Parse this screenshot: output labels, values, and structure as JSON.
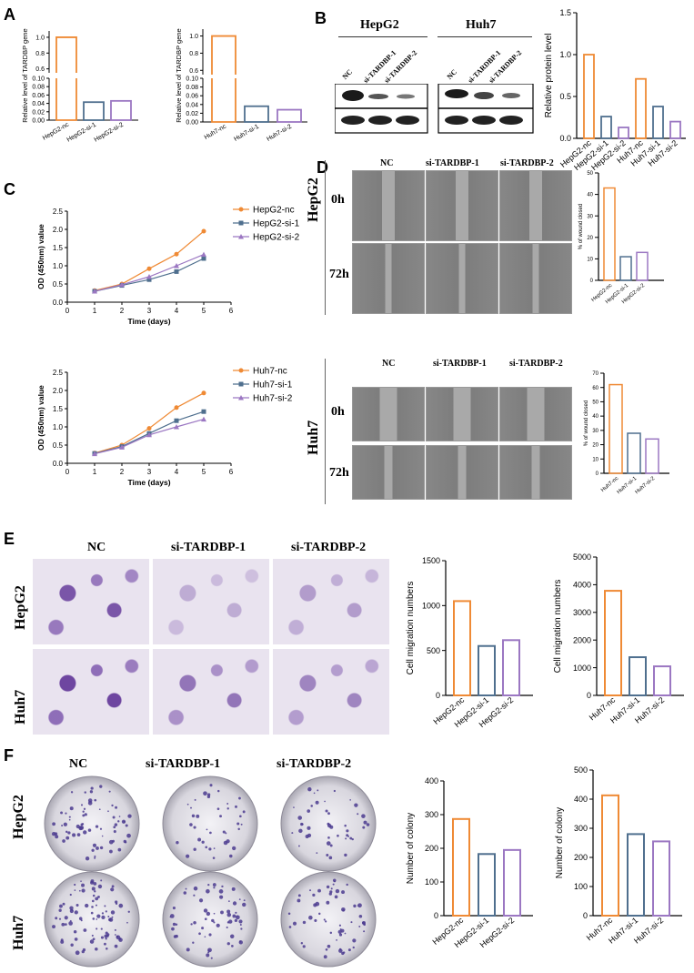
{
  "panels": {
    "A": {
      "letter": "A",
      "left_chart": {
        "ylabel": "Relative level of TARDBP gene",
        "categories": [
          "HepG2-nc",
          "HepG2-si-1",
          "HepG2-si-2"
        ],
        "values": [
          1.0,
          0.043,
          0.046
        ],
        "colors": [
          "#ef8a35",
          "#4f6f8e",
          "#9b77c2"
        ],
        "upper_ticks": [
          "0.6",
          "0.8",
          "1.0"
        ],
        "lower_ticks": [
          "0.00",
          "0.02",
          "0.04",
          "0.06",
          "0.08",
          "0.10"
        ]
      },
      "right_chart": {
        "ylabel": "Relative level of TARDBP gene",
        "categories": [
          "Huh7-nc",
          "Huh7-si-1",
          "Huh7-si-2"
        ],
        "values": [
          1.0,
          0.036,
          0.028
        ],
        "colors": [
          "#ef8a35",
          "#4f6f8e",
          "#9b77c2"
        ],
        "upper_ticks": [
          "0.6",
          "0.8",
          "1.0"
        ],
        "lower_ticks": [
          "0.00",
          "0.02",
          "0.04",
          "0.06",
          "0.08",
          "0.10"
        ]
      }
    },
    "B": {
      "letter": "B",
      "blot_groups": [
        "HepG2",
        "Huh7"
      ],
      "lane_labels": [
        "NC",
        "si-TARDBP-1",
        "si-TARDBP-2",
        "NC",
        "si-TARDBP-1",
        "si-TARDBP-2"
      ],
      "chart": {
        "ylabel": "Relative protein level",
        "categories": [
          "HepG2-nc",
          "HepG2-si-1",
          "HepG2-si-2",
          "Huh7-nc",
          "Huh7-si-1",
          "Huh7-si-2"
        ],
        "values": [
          1.0,
          0.26,
          0.13,
          0.71,
          0.38,
          0.2
        ],
        "colors": [
          "#ef8a35",
          "#4f6f8e",
          "#9b77c2",
          "#ef8a35",
          "#4f6f8e",
          "#9b77c2"
        ],
        "yticks": [
          "0.0",
          "0.5",
          "1.0",
          "1.5"
        ]
      }
    },
    "C": {
      "letter": "C",
      "charts": [
        {
          "ylabel": "OD (450nm) value",
          "xlabel": "Time (days)",
          "xticks": [
            "0",
            "1",
            "2",
            "3",
            "4",
            "5",
            "6"
          ],
          "yticks": [
            "0.0",
            "0.5",
            "1.0",
            "1.5",
            "2.0",
            "2.5"
          ],
          "series": [
            {
              "name": "HepG2-nc",
              "color": "#ef8a35",
              "x": [
                1,
                2,
                3,
                4,
                5
              ],
              "y": [
                0.32,
                0.5,
                0.92,
                1.32,
                1.95
              ]
            },
            {
              "name": "HepG2-si-1",
              "color": "#4f6f8e",
              "x": [
                1,
                2,
                3,
                4,
                5
              ],
              "y": [
                0.3,
                0.46,
                0.62,
                0.84,
                1.2
              ]
            },
            {
              "name": "HepG2-si-2",
              "color": "#9b77c2",
              "x": [
                1,
                2,
                3,
                4,
                5
              ],
              "y": [
                0.3,
                0.48,
                0.7,
                1.0,
                1.31
              ]
            }
          ]
        },
        {
          "ylabel": "OD (450nm) value",
          "xlabel": "Time (days)",
          "xticks": [
            "0",
            "1",
            "2",
            "3",
            "4",
            "5",
            "6"
          ],
          "yticks": [
            "0.0",
            "0.5",
            "1.0",
            "1.5",
            "2.0",
            "2.5"
          ],
          "series": [
            {
              "name": "Huh7-nc",
              "color": "#ef8a35",
              "x": [
                1,
                2,
                3,
                4,
                5
              ],
              "y": [
                0.28,
                0.5,
                0.96,
                1.53,
                1.93
              ]
            },
            {
              "name": "Huh7-si-1",
              "color": "#4f6f8e",
              "x": [
                1,
                2,
                3,
                4,
                5
              ],
              "y": [
                0.27,
                0.46,
                0.82,
                1.17,
                1.42
              ]
            },
            {
              "name": "Huh7-si-2",
              "color": "#9b77c2",
              "x": [
                1,
                2,
                3,
                4,
                5
              ],
              "y": [
                0.26,
                0.44,
                0.78,
                1.0,
                1.21
              ]
            }
          ]
        }
      ]
    },
    "D": {
      "letter": "D",
      "col_labels": [
        "NC",
        "si-TARDBP-1",
        "si-TARDBP-2"
      ],
      "row_labels": [
        "0h",
        "72h"
      ],
      "cell_lines": [
        "HepG2",
        "Huh7"
      ],
      "charts": [
        {
          "ylabel": "% of wound closed",
          "categories": [
            "HepG2-nc",
            "HepG2-si-1",
            "HepG2-si-2"
          ],
          "values": [
            43,
            11,
            13
          ],
          "yticks": [
            "0",
            "10",
            "20",
            "30",
            "40",
            "50"
          ],
          "colors": [
            "#ef8a35",
            "#4f6f8e",
            "#9b77c2"
          ]
        },
        {
          "ylabel": "% of wound closed",
          "categories": [
            "Huh7-nc",
            "Huh7-si-1",
            "Huh7-si-2"
          ],
          "values": [
            62,
            28,
            24
          ],
          "yticks": [
            "0",
            "10",
            "20",
            "30",
            "40",
            "50",
            "60",
            "70"
          ],
          "colors": [
            "#ef8a35",
            "#4f6f8e",
            "#9b77c2"
          ]
        }
      ]
    },
    "E": {
      "letter": "E",
      "col_labels": [
        "NC",
        "si-TARDBP-1",
        "si-TARDBP-2"
      ],
      "row_labels": [
        "HepG2",
        "Huh7"
      ],
      "charts": [
        {
          "ylabel": "Cell migration numbers",
          "categories": [
            "HepG2-nc",
            "HepG2-si-1",
            "HepG2-si-2"
          ],
          "values": [
            1050,
            550,
            615
          ],
          "yticks": [
            "0",
            "500",
            "1000",
            "1500"
          ],
          "colors": [
            "#ef8a35",
            "#4f6f8e",
            "#9b77c2"
          ]
        },
        {
          "ylabel": "Cell migration numbers",
          "categories": [
            "Huh7-nc",
            "Huh7-si-1",
            "Huh7-si-2"
          ],
          "values": [
            3780,
            1380,
            1050
          ],
          "yticks": [
            "0",
            "1000",
            "2000",
            "3000",
            "4000",
            "5000"
          ],
          "colors": [
            "#ef8a35",
            "#4f6f8e",
            "#9b77c2"
          ]
        }
      ]
    },
    "F": {
      "letter": "F",
      "col_labels": [
        "NC",
        "si-TARDBP-1",
        "si-TARDBP-2"
      ],
      "row_labels": [
        "HepG2",
        "Huh7"
      ],
      "charts": [
        {
          "ylabel": "Number of colony",
          "categories": [
            "HepG2-nc",
            "HepG2-si-1",
            "HepG2-si-2"
          ],
          "values": [
            287,
            183,
            195
          ],
          "yticks": [
            "0",
            "100",
            "200",
            "300",
            "400"
          ],
          "colors": [
            "#ef8a35",
            "#4f6f8e",
            "#9b77c2"
          ]
        },
        {
          "ylabel": "Number of colony",
          "categories": [
            "Huh7-nc",
            "Huh7-si-1",
            "Huh7-si-2"
          ],
          "values": [
            413,
            280,
            255
          ],
          "yticks": [
            "0",
            "100",
            "200",
            "300",
            "400",
            "500"
          ],
          "colors": [
            "#ef8a35",
            "#4f6f8e",
            "#9b77c2"
          ]
        }
      ]
    }
  },
  "chart_data": [
    {
      "type": "bar",
      "ylabel": "Relative level of TARDBP gene",
      "categories": [
        "HepG2-nc",
        "HepG2-si-1",
        "HepG2-si-2"
      ],
      "values": [
        1.0,
        0.043,
        0.046
      ]
    },
    {
      "type": "bar",
      "ylabel": "Relative level of TARDBP gene",
      "categories": [
        "Huh7-nc",
        "Huh7-si-1",
        "Huh7-si-2"
      ],
      "values": [
        1.0,
        0.036,
        0.028
      ]
    },
    {
      "type": "bar",
      "ylabel": "Relative protein level",
      "categories": [
        "HepG2-nc",
        "HepG2-si-1",
        "HepG2-si-2",
        "Huh7-nc",
        "Huh7-si-1",
        "Huh7-si-2"
      ],
      "values": [
        1.0,
        0.26,
        0.13,
        0.71,
        0.38,
        0.2
      ],
      "ylim": [
        0,
        1.5
      ]
    },
    {
      "type": "line",
      "xlabel": "Time (days)",
      "ylabel": "OD (450nm) value",
      "x": [
        1,
        2,
        3,
        4,
        5
      ],
      "xlim": [
        0,
        6
      ],
      "ylim": [
        0,
        2.5
      ],
      "series": [
        {
          "name": "HepG2-nc",
          "values": [
            0.32,
            0.5,
            0.92,
            1.32,
            1.95
          ]
        },
        {
          "name": "HepG2-si-1",
          "values": [
            0.3,
            0.46,
            0.62,
            0.84,
            1.2
          ]
        },
        {
          "name": "HepG2-si-2",
          "values": [
            0.3,
            0.48,
            0.7,
            1.0,
            1.31
          ]
        }
      ]
    },
    {
      "type": "line",
      "xlabel": "Time (days)",
      "ylabel": "OD (450nm) value",
      "x": [
        1,
        2,
        3,
        4,
        5
      ],
      "xlim": [
        0,
        6
      ],
      "ylim": [
        0,
        2.5
      ],
      "series": [
        {
          "name": "Huh7-nc",
          "values": [
            0.28,
            0.5,
            0.96,
            1.53,
            1.93
          ]
        },
        {
          "name": "Huh7-si-1",
          "values": [
            0.27,
            0.46,
            0.82,
            1.17,
            1.42
          ]
        },
        {
          "name": "Huh7-si-2",
          "values": [
            0.26,
            0.44,
            0.78,
            1.0,
            1.21
          ]
        }
      ]
    },
    {
      "type": "bar",
      "ylabel": "% of wound closed",
      "categories": [
        "HepG2-nc",
        "HepG2-si-1",
        "HepG2-si-2"
      ],
      "values": [
        43,
        11,
        13
      ],
      "ylim": [
        0,
        50
      ]
    },
    {
      "type": "bar",
      "ylabel": "% of wound closed",
      "categories": [
        "Huh7-nc",
        "Huh7-si-1",
        "Huh7-si-2"
      ],
      "values": [
        62,
        28,
        24
      ],
      "ylim": [
        0,
        70
      ]
    },
    {
      "type": "bar",
      "ylabel": "Cell migration numbers",
      "categories": [
        "HepG2-nc",
        "HepG2-si-1",
        "HepG2-si-2"
      ],
      "values": [
        1050,
        550,
        615
      ],
      "ylim": [
        0,
        1500
      ]
    },
    {
      "type": "bar",
      "ylabel": "Cell migration numbers",
      "categories": [
        "Huh7-nc",
        "Huh7-si-1",
        "Huh7-si-2"
      ],
      "values": [
        3780,
        1380,
        1050
      ],
      "ylim": [
        0,
        5000
      ]
    },
    {
      "type": "bar",
      "ylabel": "Number of colony",
      "categories": [
        "HepG2-nc",
        "HepG2-si-1",
        "HepG2-si-2"
      ],
      "values": [
        287,
        183,
        195
      ],
      "ylim": [
        0,
        400
      ]
    },
    {
      "type": "bar",
      "ylabel": "Number of colony",
      "categories": [
        "Huh7-nc",
        "Huh7-si-1",
        "Huh7-si-2"
      ],
      "values": [
        413,
        280,
        255
      ],
      "ylim": [
        0,
        500
      ]
    }
  ]
}
